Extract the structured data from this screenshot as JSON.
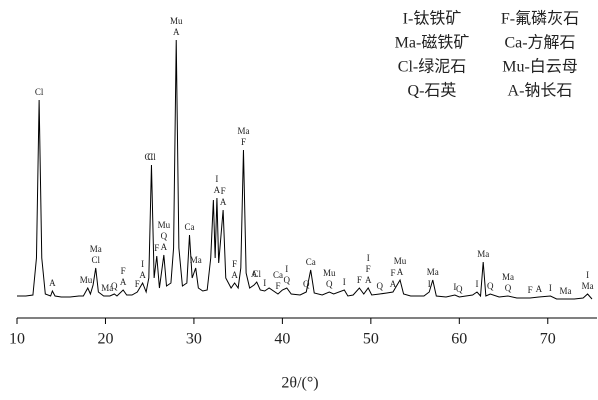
{
  "chart_data": {
    "type": "line",
    "x_label": "2θ/(°)",
    "color": "#000000",
    "xlim": [
      10,
      75
    ],
    "xticks": [
      10,
      20,
      30,
      40,
      50,
      60,
      70
    ],
    "ylim": [
      0,
      300
    ],
    "key": [
      [
        "I-钛铁矿",
        "F-氟磷灰石"
      ],
      [
        "Ma-磁铁矿",
        "Ca-方解石"
      ],
      [
        "Cl-绿泥石",
        "Mu-白云母"
      ],
      [
        "Q-石英",
        "A-钠长石"
      ]
    ],
    "x": [
      10.0,
      10.5,
      11.0,
      11.8,
      12.2,
      12.5,
      12.8,
      13.2,
      13.8,
      14.0,
      14.3,
      15.0,
      16.0,
      17.0,
      17.5,
      18.0,
      18.3,
      18.6,
      18.9,
      19.2,
      19.8,
      20.5,
      21.0,
      21.3,
      22.0,
      22.4,
      23.0,
      23.6,
      24.2,
      24.6,
      24.9,
      25.2,
      25.5,
      25.8,
      26.1,
      26.6,
      26.9,
      27.4,
      27.7,
      28.0,
      28.3,
      28.7,
      29.2,
      29.5,
      29.8,
      30.2,
      30.5,
      31.0,
      31.5,
      31.9,
      32.2,
      32.4,
      32.6,
      32.8,
      33.3,
      33.6,
      34.2,
      34.6,
      35.0,
      35.3,
      35.6,
      35.9,
      36.3,
      36.8,
      37.1,
      37.5,
      38.0,
      38.5,
      39.5,
      40.0,
      40.5,
      41.0,
      42.0,
      42.7,
      43.2,
      43.6,
      44.5,
      45.3,
      45.8,
      47.0,
      47.4,
      48.0,
      48.7,
      49.2,
      49.7,
      50.1,
      51.0,
      51.8,
      52.5,
      53.3,
      53.7,
      54.5,
      56.0,
      56.6,
      57.0,
      57.4,
      58.5,
      59.5,
      60.0,
      61.5,
      62.0,
      62.4,
      62.7,
      63.0,
      63.5,
      64.5,
      65.5,
      66.5,
      68.0,
      69.0,
      70.3,
      71.0,
      72.0,
      73.0,
      74.0,
      74.5,
      75.0
    ],
    "values": [
      22,
      22,
      22,
      23,
      60,
      218,
      60,
      24,
      22,
      27,
      22,
      21,
      21,
      22,
      22,
      30,
      24,
      33,
      50,
      26,
      22,
      22,
      24,
      22,
      28,
      23,
      23,
      26,
      35,
      26,
      40,
      153,
      40,
      62,
      30,
      63,
      32,
      35,
      70,
      278,
      70,
      32,
      35,
      83,
      40,
      50,
      30,
      27,
      28,
      60,
      118,
      60,
      120,
      55,
      108,
      40,
      30,
      35,
      30,
      50,
      168,
      45,
      30,
      33,
      36,
      28,
      27,
      30,
      24,
      28,
      30,
      24,
      23,
      26,
      48,
      25,
      23,
      26,
      24,
      28,
      22,
      23,
      30,
      24,
      30,
      23,
      24,
      25,
      26,
      38,
      24,
      22,
      22,
      26,
      38,
      22,
      21,
      23,
      21,
      23,
      26,
      22,
      56,
      22,
      24,
      21,
      22,
      20,
      20,
      21,
      22,
      19,
      19,
      19,
      20,
      24,
      19
    ],
    "annotations": [
      {
        "x": 12.5,
        "labels": [
          "Cl"
        ]
      },
      {
        "x": 14.0,
        "labels": [
          "A"
        ]
      },
      {
        "x": 17.8,
        "labels": [
          "Mu"
        ]
      },
      {
        "x": 18.9,
        "labels": [
          "Cl",
          "Ma"
        ]
      },
      {
        "x": 20.2,
        "labels": [
          "Ma"
        ]
      },
      {
        "x": 21.0,
        "labels": [
          "Q"
        ]
      },
      {
        "x": 22.0,
        "labels": [
          "A",
          "F"
        ]
      },
      {
        "x": 23.6,
        "labels": [
          "F"
        ]
      },
      {
        "x": 24.2,
        "labels": [
          "A",
          "I"
        ]
      },
      {
        "x": 24.9,
        "labels": [
          "Cl"
        ]
      },
      {
        "x": 25.2,
        "labels": [
          "Cl"
        ]
      },
      {
        "x": 25.8,
        "labels": [
          "F"
        ]
      },
      {
        "x": 26.6,
        "labels": [
          "A",
          "Q",
          "Mu"
        ]
      },
      {
        "x": 28.0,
        "labels": [
          "A",
          "Mu"
        ]
      },
      {
        "x": 29.5,
        "labels": [
          "Ca"
        ]
      },
      {
        "x": 30.2,
        "labels": [
          "Ma"
        ]
      },
      {
        "x": 32.6,
        "labels": [
          "A",
          "I"
        ]
      },
      {
        "x": 33.3,
        "labels": [
          "A",
          "F"
        ]
      },
      {
        "x": 34.6,
        "labels": [
          "A",
          "F"
        ]
      },
      {
        "x": 35.6,
        "labels": [
          "F",
          "Ma"
        ]
      },
      {
        "x": 36.8,
        "labels": [
          "A"
        ]
      },
      {
        "x": 37.1,
        "labels": [
          "Cl"
        ]
      },
      {
        "x": 38.0,
        "labels": [
          "I"
        ]
      },
      {
        "x": 39.5,
        "labels": [
          "F",
          "Ca"
        ]
      },
      {
        "x": 40.5,
        "labels": [
          "Q",
          "I"
        ]
      },
      {
        "x": 42.7,
        "labels": [
          "Q"
        ]
      },
      {
        "x": 43.2,
        "labels": [
          "Ca"
        ]
      },
      {
        "x": 45.3,
        "labels": [
          "Q",
          "Mu"
        ]
      },
      {
        "x": 47.0,
        "labels": [
          "I"
        ]
      },
      {
        "x": 48.7,
        "labels": [
          "F"
        ]
      },
      {
        "x": 49.7,
        "labels": [
          "A",
          "F",
          "I"
        ]
      },
      {
        "x": 51.0,
        "labels": [
          "Q"
        ]
      },
      {
        "x": 52.5,
        "labels": [
          "A",
          "F"
        ]
      },
      {
        "x": 53.3,
        "labels": [
          "A",
          "Mu"
        ]
      },
      {
        "x": 56.6,
        "labels": [
          "I"
        ]
      },
      {
        "x": 57.0,
        "labels": [
          "Ma"
        ]
      },
      {
        "x": 59.5,
        "labels": [
          "I"
        ]
      },
      {
        "x": 60.0,
        "labels": [
          "Q"
        ]
      },
      {
        "x": 62.0,
        "labels": [
          "I"
        ]
      },
      {
        "x": 62.7,
        "labels": [
          "Ma"
        ]
      },
      {
        "x": 63.5,
        "labels": [
          "Q"
        ]
      },
      {
        "x": 65.5,
        "labels": [
          "Q",
          "Ma"
        ]
      },
      {
        "x": 68.0,
        "labels": [
          "F"
        ]
      },
      {
        "x": 69.0,
        "labels": [
          "A"
        ]
      },
      {
        "x": 70.3,
        "labels": [
          "I"
        ]
      },
      {
        "x": 72.0,
        "labels": [
          "Ma"
        ]
      },
      {
        "x": 74.5,
        "labels": [
          "Ma",
          "I"
        ]
      }
    ]
  }
}
